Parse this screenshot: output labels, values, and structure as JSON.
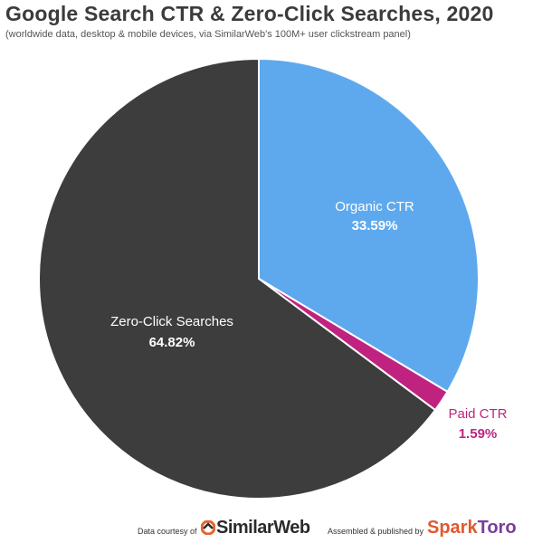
{
  "chart_data": {
    "type": "pie",
    "title": "Google Search CTR & Zero-Click Searches, 2020",
    "subtitle": "(worldwide data, desktop & mobile devices, via SimilarWeb's 100M+ user clickstream panel)",
    "slices": [
      {
        "label": "Organic CTR",
        "value": 33.59,
        "value_text": "33.59%",
        "color": "#5ea9ee",
        "label_color": "#ffffff"
      },
      {
        "label": "Paid CTR",
        "value": 1.59,
        "value_text": "1.59%",
        "color": "#c0237f",
        "label_color": "#c0237f"
      },
      {
        "label": "Zero-Click Searches",
        "value": 64.82,
        "value_text": "64.82%",
        "color": "#3d3d3d",
        "label_color": "#ffffff"
      }
    ]
  },
  "footer": {
    "courtesy": "Data courtesy of",
    "similarweb": "SimilarWeb",
    "assembled": "Assembled & published by",
    "sparktoro_spark": "Spark",
    "sparktoro_toro": "Toro"
  }
}
